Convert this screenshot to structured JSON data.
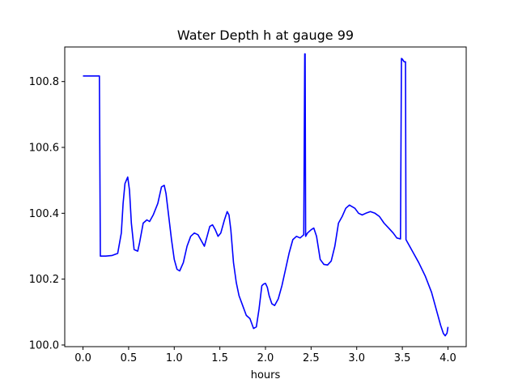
{
  "chart_data": {
    "type": "line",
    "title": "Water Depth h at gauge 99",
    "xlabel": "hours",
    "ylabel": "",
    "xlim": [
      -0.2,
      4.2
    ],
    "ylim": [
      99.995,
      100.905
    ],
    "grid": false,
    "legend": "none",
    "xticks": [
      0.0,
      0.5,
      1.0,
      1.5,
      2.0,
      2.5,
      3.0,
      3.5,
      4.0
    ],
    "xtick_labels": [
      "0.0",
      "0.5",
      "1.0",
      "1.5",
      "2.0",
      "2.5",
      "3.0",
      "3.5",
      "4.0"
    ],
    "yticks": [
      100.0,
      100.2,
      100.4,
      100.6,
      100.8
    ],
    "ytick_labels": [
      "100.0",
      "100.2",
      "100.4",
      "100.6",
      "100.8"
    ],
    "series": [
      {
        "color": "#0000ff",
        "x": [
          0.0,
          0.17,
          0.18,
          0.19,
          0.25,
          0.32,
          0.38,
          0.42,
          0.44,
          0.46,
          0.49,
          0.51,
          0.53,
          0.56,
          0.6,
          0.62,
          0.66,
          0.7,
          0.73,
          0.77,
          0.82,
          0.86,
          0.89,
          0.91,
          0.94,
          0.97,
          1.0,
          1.03,
          1.06,
          1.1,
          1.14,
          1.18,
          1.22,
          1.26,
          1.3,
          1.33,
          1.36,
          1.39,
          1.42,
          1.45,
          1.48,
          1.51,
          1.55,
          1.58,
          1.6,
          1.62,
          1.65,
          1.68,
          1.71,
          1.75,
          1.79,
          1.83,
          1.87,
          1.9,
          1.93,
          1.96,
          1.98,
          2.0,
          2.02,
          2.04,
          2.07,
          2.1,
          2.14,
          2.18,
          2.22,
          2.26,
          2.3,
          2.34,
          2.38,
          2.4,
          2.42,
          2.43,
          2.435,
          2.44,
          2.46,
          2.5,
          2.53,
          2.56,
          2.6,
          2.64,
          2.68,
          2.72,
          2.76,
          2.8,
          2.84,
          2.88,
          2.92,
          2.95,
          2.98,
          3.02,
          3.06,
          3.1,
          3.15,
          3.2,
          3.25,
          3.3,
          3.35,
          3.4,
          3.44,
          3.48,
          3.49,
          3.5,
          3.52,
          3.535,
          3.54,
          3.6,
          3.68,
          3.75,
          3.82,
          3.88,
          3.92,
          3.95,
          3.97,
          3.99,
          4.0
        ],
        "values": [
          100.817,
          100.817,
          100.817,
          100.27,
          100.27,
          100.272,
          100.278,
          100.34,
          100.43,
          100.49,
          100.51,
          100.47,
          100.37,
          100.29,
          100.285,
          100.31,
          100.37,
          100.38,
          100.375,
          100.395,
          100.43,
          100.48,
          100.485,
          100.46,
          100.39,
          100.32,
          100.26,
          100.23,
          100.225,
          100.25,
          100.3,
          100.33,
          100.34,
          100.335,
          100.315,
          100.3,
          100.33,
          100.36,
          100.365,
          100.35,
          100.33,
          100.34,
          100.38,
          100.405,
          100.395,
          100.35,
          100.25,
          100.19,
          100.15,
          100.12,
          100.09,
          100.08,
          100.05,
          100.055,
          100.11,
          100.18,
          100.185,
          100.187,
          100.175,
          100.15,
          100.125,
          100.12,
          100.14,
          100.18,
          100.23,
          100.28,
          100.32,
          100.33,
          100.325,
          100.33,
          100.335,
          100.884,
          100.884,
          100.33,
          100.34,
          100.35,
          100.355,
          100.33,
          100.26,
          100.245,
          100.243,
          100.255,
          100.3,
          100.37,
          100.39,
          100.415,
          100.425,
          100.42,
          100.415,
          100.4,
          100.395,
          100.4,
          100.405,
          100.4,
          100.39,
          100.37,
          100.355,
          100.34,
          100.325,
          100.322,
          100.87,
          100.868,
          100.86,
          100.86,
          100.32,
          100.29,
          100.25,
          100.21,
          100.16,
          100.1,
          100.06,
          100.035,
          100.028,
          100.036,
          100.055
        ]
      }
    ]
  }
}
